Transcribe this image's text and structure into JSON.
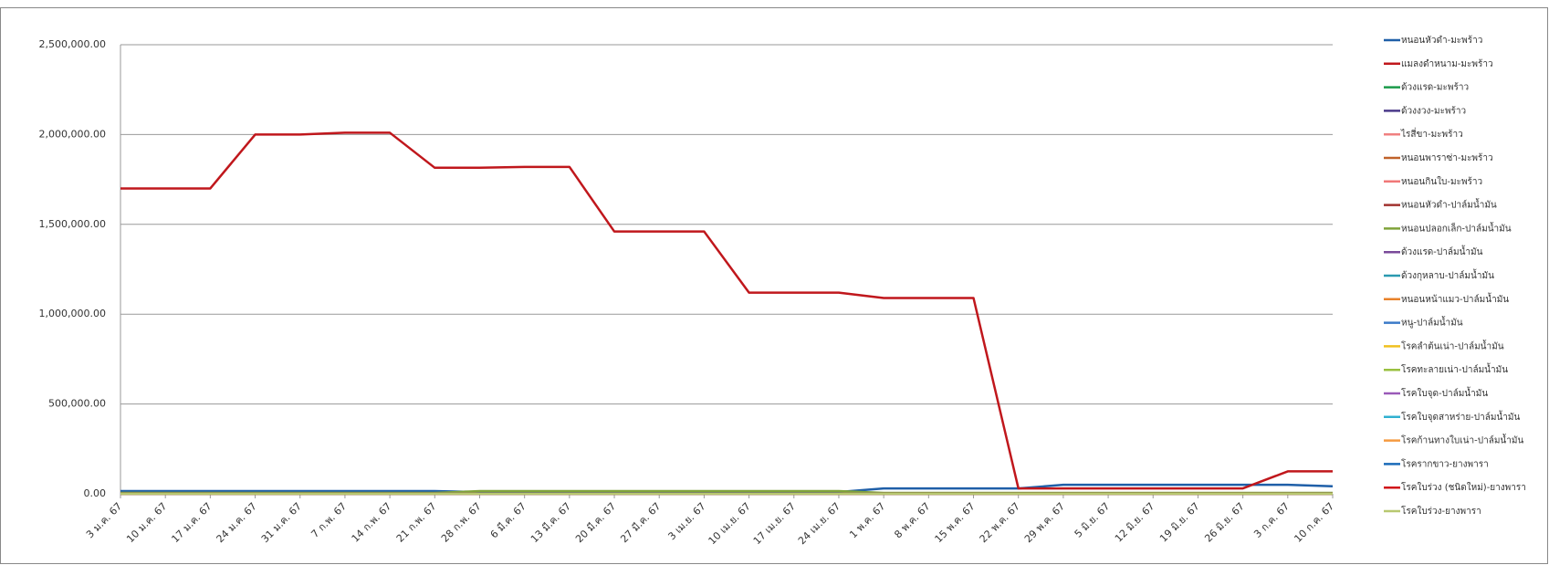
{
  "chart_data": {
    "type": "line",
    "categories": [
      "3 ม.ค. 67",
      "10 ม.ค. 67",
      "17 ม.ค. 67",
      "24 ม.ค. 67",
      "31 ม.ค. 67",
      "7 ก.พ. 67",
      "14 ก.พ. 67",
      "21 ก.พ. 67",
      "28 ก.พ. 67",
      "6 มี.ค. 67",
      "13 มี.ค. 67",
      "20 มี.ค. 67",
      "27 มี.ค. 67",
      "3 เม.ย. 67",
      "10 เม.ย. 67",
      "17 เม.ย. 67",
      "24 เม.ย. 67",
      "1 พ.ค. 67",
      "8 พ.ค. 67",
      "15 พ.ค. 67",
      "22 พ.ค. 67",
      "29 พ.ค. 67",
      "5 มิ.ย. 67",
      "12 มิ.ย. 67",
      "19 มิ.ย. 67",
      "26 มิ.ย. 67",
      "3 ก.ค. 67",
      "10 ก.ค. 67"
    ],
    "ylim": [
      0,
      2500000
    ],
    "yticks": [
      {
        "value": 0,
        "label": "0.00"
      },
      {
        "value": 500000,
        "label": "500,000.00"
      },
      {
        "value": 1000000,
        "label": "1,000,000.00"
      },
      {
        "value": 1500000,
        "label": "1,500,000.00"
      },
      {
        "value": 2000000,
        "label": "2,000,000.00"
      },
      {
        "value": 2500000,
        "label": "2,500,000.00"
      }
    ],
    "grid": true,
    "series": [
      {
        "name": "หนอนหัวดำ-มะพร้าว",
        "color": "#1f5fa8",
        "values": [
          15000,
          15000,
          15000,
          15000,
          15000,
          15000,
          15000,
          15000,
          10000,
          10000,
          10000,
          10000,
          10000,
          10000,
          10000,
          10000,
          10000,
          30000,
          30000,
          30000,
          30000,
          50000,
          50000,
          50000,
          50000,
          50000,
          50000,
          42000
        ]
      },
      {
        "name": "แมลงดำหนาม-มะพร้าว",
        "color": "#c0171c",
        "values": [
          1700000,
          1700000,
          1700000,
          2000000,
          2000000,
          2010000,
          2010000,
          1815000,
          1815000,
          1820000,
          1820000,
          1460000,
          1460000,
          1460000,
          1120000,
          1120000,
          1120000,
          1090000,
          1090000,
          1090000,
          30000,
          30000,
          30000,
          30000,
          30000,
          30000,
          125000,
          125000
        ]
      },
      {
        "name": "ด้วงแรด-มะพร้าว",
        "color": "#1a9a4a",
        "values": [
          0,
          0,
          0,
          0,
          0,
          0,
          0,
          0,
          0,
          0,
          0,
          0,
          0,
          0,
          0,
          0,
          0,
          0,
          0,
          0,
          0,
          0,
          0,
          0,
          0,
          0,
          0,
          0
        ]
      },
      {
        "name": "ด้วงงวง-มะพร้าว",
        "color": "#4b3a8a",
        "values": [
          0,
          0,
          0,
          0,
          0,
          0,
          0,
          0,
          0,
          0,
          0,
          0,
          0,
          0,
          0,
          0,
          0,
          0,
          0,
          0,
          0,
          0,
          0,
          0,
          0,
          0,
          0,
          0
        ]
      },
      {
        "name": "ไรสี่ขา-มะพร้าว",
        "color": "#f08080",
        "values": [
          0,
          0,
          0,
          0,
          0,
          0,
          0,
          0,
          0,
          0,
          0,
          0,
          0,
          0,
          0,
          0,
          0,
          0,
          0,
          0,
          0,
          0,
          0,
          0,
          0,
          0,
          0,
          0
        ]
      },
      {
        "name": "หนอนพาราซ่า-มะพร้าว",
        "color": "#c0622a",
        "values": [
          0,
          0,
          0,
          0,
          0,
          0,
          0,
          0,
          0,
          0,
          0,
          0,
          0,
          0,
          0,
          0,
          0,
          0,
          0,
          0,
          0,
          0,
          0,
          0,
          0,
          0,
          0,
          0
        ]
      },
      {
        "name": "หนอนกินใบ-มะพร้าว",
        "color": "#f07878",
        "values": [
          0,
          0,
          0,
          0,
          0,
          0,
          0,
          0,
          0,
          0,
          0,
          0,
          0,
          0,
          0,
          0,
          0,
          0,
          0,
          0,
          0,
          0,
          0,
          0,
          0,
          0,
          0,
          0
        ]
      },
      {
        "name": "หนอนหัวดำ-ปาล์มน้ำมัน",
        "color": "#a0322e",
        "values": [
          0,
          0,
          0,
          0,
          0,
          0,
          0,
          0,
          0,
          0,
          0,
          0,
          0,
          0,
          0,
          0,
          0,
          0,
          0,
          0,
          0,
          0,
          0,
          0,
          0,
          0,
          0,
          0
        ]
      },
      {
        "name": "หนอนปลอกเล็ก-ปาล์มน้ำมัน",
        "color": "#7fa33a",
        "values": [
          5000,
          5000,
          5000,
          5000,
          5000,
          5000,
          5000,
          5000,
          15000,
          15000,
          15000,
          15000,
          15000,
          15000,
          15000,
          15000,
          15000,
          5000,
          5000,
          5000,
          5000,
          5000,
          5000,
          5000,
          5000,
          5000,
          5000,
          5000
        ]
      },
      {
        "name": "ด้วงแรด-ปาล์มน้ำมัน",
        "color": "#7a4a9a",
        "values": [
          0,
          0,
          0,
          0,
          0,
          0,
          0,
          0,
          0,
          0,
          0,
          0,
          0,
          0,
          0,
          0,
          0,
          0,
          0,
          0,
          0,
          0,
          0,
          0,
          0,
          0,
          0,
          0
        ]
      },
      {
        "name": "ด้วงกุหลาบ-ปาล์มน้ำมัน",
        "color": "#2a9ab0",
        "values": [
          0,
          0,
          0,
          0,
          0,
          0,
          0,
          0,
          0,
          0,
          0,
          0,
          0,
          0,
          0,
          0,
          0,
          0,
          0,
          0,
          0,
          0,
          0,
          0,
          0,
          0,
          0,
          0
        ]
      },
      {
        "name": "หนอนหน้าแมว-ปาล์มน้ำมัน",
        "color": "#e8822a",
        "values": [
          0,
          0,
          0,
          0,
          0,
          0,
          0,
          0,
          0,
          0,
          0,
          0,
          0,
          0,
          0,
          0,
          0,
          0,
          0,
          0,
          0,
          0,
          0,
          0,
          0,
          0,
          0,
          0
        ]
      },
      {
        "name": "หนู-ปาล์มน้ำมัน",
        "color": "#3a7ac8",
        "values": [
          0,
          0,
          0,
          0,
          0,
          0,
          0,
          0,
          0,
          0,
          0,
          0,
          0,
          0,
          0,
          0,
          0,
          0,
          0,
          0,
          0,
          0,
          0,
          0,
          0,
          0,
          0,
          0
        ]
      },
      {
        "name": "โรคลำต้นเน่า-ปาล์มน้ำมัน",
        "color": "#f0c020",
        "values": [
          0,
          0,
          0,
          0,
          0,
          0,
          0,
          0,
          0,
          0,
          0,
          0,
          0,
          0,
          0,
          0,
          0,
          0,
          0,
          0,
          0,
          0,
          0,
          0,
          0,
          0,
          0,
          0
        ]
      },
      {
        "name": "โรคทะลายเน่า-ปาล์มน้ำมัน",
        "color": "#9ac040",
        "values": [
          0,
          0,
          0,
          0,
          0,
          0,
          0,
          0,
          0,
          0,
          0,
          0,
          0,
          0,
          0,
          0,
          0,
          0,
          0,
          0,
          0,
          0,
          0,
          0,
          0,
          0,
          0,
          0
        ]
      },
      {
        "name": "โรคใบจุด-ปาล์มน้ำมัน",
        "color": "#9a5ab8",
        "values": [
          0,
          0,
          0,
          0,
          0,
          0,
          0,
          0,
          0,
          0,
          0,
          0,
          0,
          0,
          0,
          0,
          0,
          0,
          0,
          0,
          0,
          0,
          0,
          0,
          0,
          0,
          0,
          0
        ]
      },
      {
        "name": "โรคใบจุดสาหร่าย-ปาล์มน้ำมัน",
        "color": "#30b0d0",
        "values": [
          0,
          0,
          0,
          0,
          0,
          0,
          0,
          0,
          0,
          0,
          0,
          0,
          0,
          0,
          0,
          0,
          0,
          0,
          0,
          0,
          0,
          0,
          0,
          0,
          0,
          0,
          0,
          0
        ]
      },
      {
        "name": "โรคก้านทางใบเน่า-ปาล์มน้ำมัน",
        "color": "#f59a40",
        "values": [
          0,
          0,
          0,
          0,
          0,
          0,
          0,
          0,
          0,
          0,
          0,
          0,
          0,
          0,
          0,
          0,
          0,
          0,
          0,
          0,
          0,
          0,
          0,
          0,
          0,
          0,
          0,
          0
        ]
      },
      {
        "name": "โรครากขาว-ยางพารา",
        "color": "#1a6ab8",
        "values": [
          0,
          0,
          0,
          0,
          0,
          0,
          0,
          0,
          0,
          0,
          0,
          0,
          0,
          0,
          0,
          0,
          0,
          0,
          0,
          0,
          0,
          0,
          0,
          0,
          0,
          0,
          0,
          0
        ]
      },
      {
        "name": "โรคใบร่วง (ชนิดใหม่)-ยางพารา",
        "color": "#d0141a",
        "values": [
          0,
          0,
          0,
          0,
          0,
          0,
          0,
          0,
          0,
          0,
          0,
          0,
          0,
          0,
          0,
          0,
          0,
          0,
          0,
          0,
          0,
          0,
          0,
          0,
          0,
          0,
          0,
          0
        ]
      },
      {
        "name": "โรคใบร่วง-ยางพารา",
        "color": "#b8c870",
        "values": [
          0,
          0,
          0,
          0,
          0,
          0,
          0,
          0,
          0,
          0,
          0,
          0,
          0,
          0,
          0,
          0,
          0,
          0,
          0,
          0,
          0,
          0,
          0,
          0,
          0,
          0,
          0,
          0
        ]
      }
    ]
  }
}
